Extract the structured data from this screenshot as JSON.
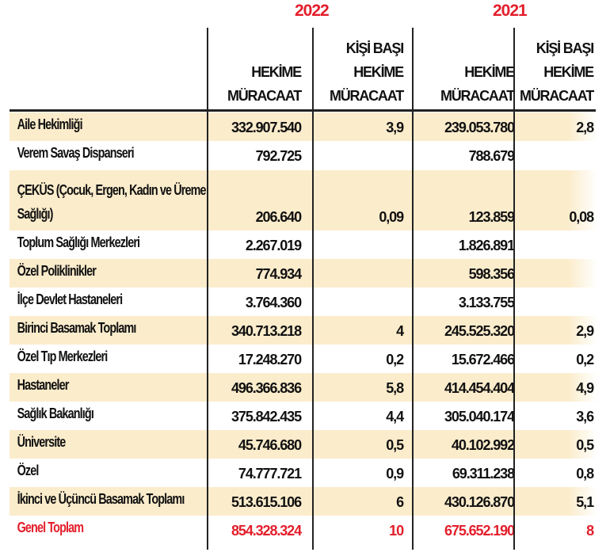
{
  "years": [
    "2022",
    "2021"
  ],
  "headers": [
    "HEKİME MÜRACAAT",
    "KİŞİ BAŞI HEKİME MÜRACAAT",
    "HEKİME MÜRACAAT",
    "KİŞİ BAŞI HEKİME MÜRACAAT"
  ],
  "header_lines": {
    "h1": [
      "HEKİME",
      "MÜRACAAT"
    ],
    "h2": [
      "KİŞİ BAŞI",
      "HEKİME",
      "MÜRACAAT"
    ]
  },
  "colors": {
    "accent": "#e31e2b",
    "shade": "#fbeccb"
  },
  "rows": [
    {
      "label": "Aile Hekimliği",
      "v2022": "332.907.540",
      "p2022": "3,9",
      "v2021": "239.053.780",
      "p2021": "2,8"
    },
    {
      "label": "Verem Savaş Dispanseri",
      "v2022": "792.725",
      "p2022": "",
      "v2021": "788.679",
      "p2021": ""
    },
    {
      "label": "ÇEKÜS (Çocuk, Ergen, Kadın ve Üreme Sağlığı)",
      "v2022": "206.640",
      "p2022": "0,09",
      "v2021": "123.859",
      "p2021": "0,08"
    },
    {
      "label": "Toplum Sağlığı Merkezleri",
      "v2022": "2.267.019",
      "p2022": "",
      "v2021": "1.826.891",
      "p2021": ""
    },
    {
      "label": "Özel Poliklinikler",
      "v2022": "774.934",
      "p2022": "",
      "v2021": "598.356",
      "p2021": ""
    },
    {
      "label": "İlçe Devlet Hastaneleri",
      "v2022": "3.764.360",
      "p2022": "",
      "v2021": "3.133.755",
      "p2021": ""
    },
    {
      "label": "Birinci Basamak Toplamı",
      "v2022": "340.713.218",
      "p2022": "4",
      "v2021": "245.525.320",
      "p2021": "2,9"
    },
    {
      "label": "Özel Tıp Merkezleri",
      "v2022": "17.248.270",
      "p2022": "0,2",
      "v2021": "15.672.466",
      "p2021": "0,2"
    },
    {
      "label": "Hastaneler",
      "v2022": "496.366.836",
      "p2022": "5,8",
      "v2021": "414.454.404",
      "p2021": "4,9"
    },
    {
      "label": "Sağlık Bakanlığı",
      "v2022": "375.842.435",
      "p2022": "4,4",
      "v2021": "305.040.174",
      "p2021": "3,6"
    },
    {
      "label": "Üniversite",
      "v2022": "45.746.680",
      "p2022": "0,5",
      "v2021": "40.102.992",
      "p2021": "0,5"
    },
    {
      "label": "Özel",
      "v2022": "74.777.721",
      "p2022": "0,9",
      "v2021": "69.311.238",
      "p2021": "0,8"
    },
    {
      "label": "İkinci ve Üçüncü Basamak Toplamı",
      "v2022": "513.615.106",
      "p2022": "6",
      "v2021": "430.126.870",
      "p2021": "5,1"
    },
    {
      "label": "Genel Toplam",
      "v2022": "854.328.324",
      "p2022": "10",
      "v2021": "675.652.190",
      "p2021": "8"
    }
  ]
}
